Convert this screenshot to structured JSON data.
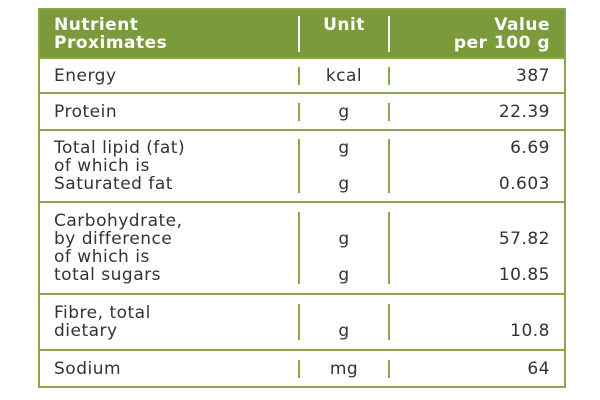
{
  "table": {
    "header": [
      [
        "Nutrient",
        "Proximates"
      ],
      [
        "Unit"
      ],
      [
        "Value",
        "per 100 g"
      ]
    ],
    "rows": [
      [
        {
          "name": "Energy",
          "unit": "kcal",
          "value": 387
        }
      ],
      [
        {
          "name": "Protein",
          "unit": "g",
          "value": 22.39
        }
      ],
      [
        {
          "name": "Total lipid (fat)",
          "unit": "g",
          "value": 6.69
        },
        {
          "name": "of which is"
        },
        {
          "name": "Saturated fat",
          "unit": "g",
          "value": 0.603
        }
      ],
      [
        {
          "name": "Carbohydrate,"
        },
        {
          "name": "by difference",
          "unit": "g",
          "value": 57.82
        },
        {
          "name": "of which is"
        },
        {
          "name": "total sugars",
          "unit": "g",
          "value": 10.85
        }
      ],
      [
        {
          "name": "Fibre, total"
        },
        {
          "name": "dietary",
          "unit": "g",
          "value": 10.8
        }
      ],
      [
        {
          "name": "Sodium",
          "unit": "mg",
          "value": 64
        }
      ]
    ]
  }
}
